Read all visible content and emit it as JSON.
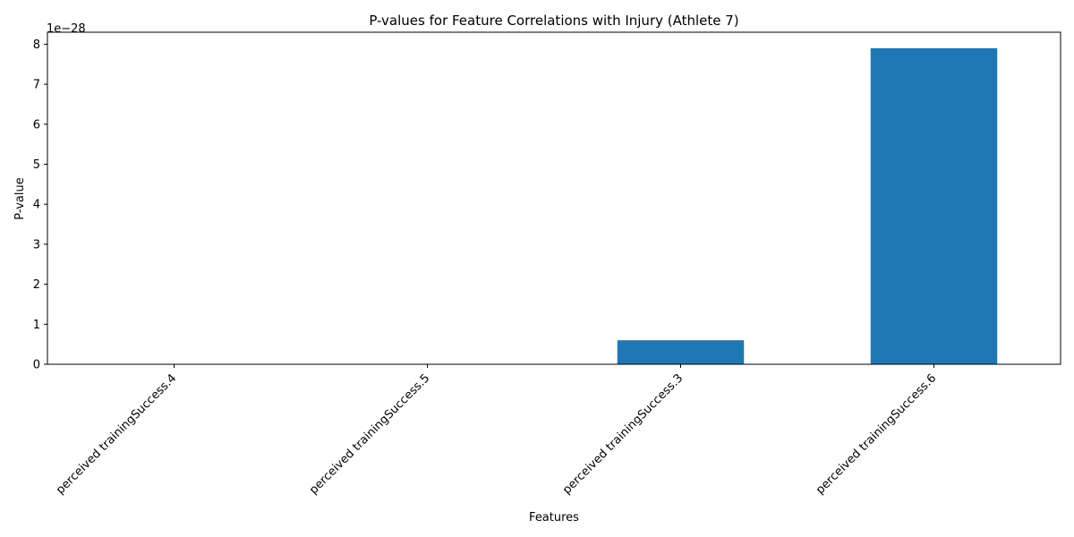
{
  "chart_data": {
    "type": "bar",
    "title": "P-values for Feature Correlations with Injury (Athlete 7)",
    "xlabel": "Features",
    "ylabel": "P-value",
    "offset_text": "1e−28",
    "categories": [
      "perceived trainingSuccess.4",
      "perceived trainingSuccess.5",
      "perceived trainingSuccess.3",
      "perceived trainingSuccess.6"
    ],
    "values": [
      0.0,
      0.0,
      0.6,
      7.9
    ],
    "ylim": [
      0,
      8.3
    ],
    "yticks": [
      "0",
      "1",
      "2",
      "3",
      "4",
      "5",
      "6",
      "7",
      "8"
    ],
    "bar_color": "#1f77b4",
    "grid": false,
    "legend": "none"
  }
}
